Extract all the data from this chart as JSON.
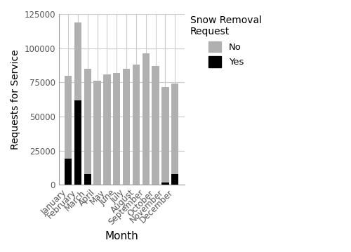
{
  "months": [
    "January",
    "February",
    "March",
    "April",
    "May",
    "June",
    "July",
    "August",
    "September",
    "October",
    "November",
    "December"
  ],
  "no_values": [
    61000,
    57000,
    77000,
    76000,
    81000,
    82000,
    85000,
    88000,
    96000,
    87000,
    70000,
    66000
  ],
  "yes_values": [
    19000,
    62000,
    8000,
    0,
    0,
    0,
    0,
    0,
    0,
    0,
    1500,
    8000
  ],
  "color_no": "#b0b0b0",
  "color_yes": "#000000",
  "xlabel": "Month",
  "ylabel": "Requests for Service",
  "ylim": [
    0,
    125000
  ],
  "yticks": [
    0,
    25000,
    50000,
    75000,
    100000,
    125000
  ],
  "ytick_labels": [
    "0",
    "25000",
    "50000",
    "75000",
    "100000",
    "125000"
  ],
  "legend_title": "Snow Removal\nRequest",
  "legend_labels": [
    "No",
    "Yes"
  ],
  "background_color": "#ffffff",
  "panel_color": "#ffffff",
  "grid_color": "#cccccc"
}
